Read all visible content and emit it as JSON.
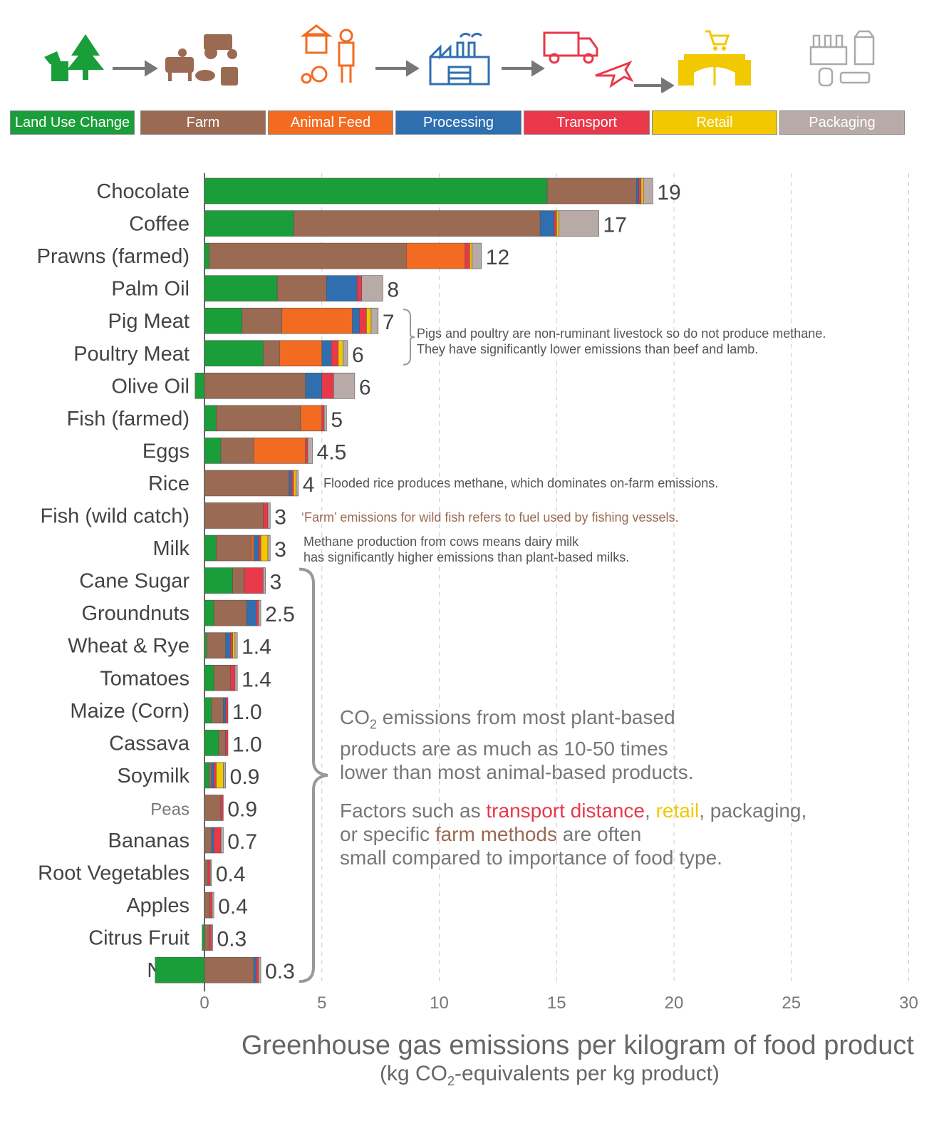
{
  "colors": {
    "Land Use Change": "#1a9e3a",
    "Farm": "#9a6a52",
    "Animal Feed": "#f26b21",
    "Processing": "#2f6fb0",
    "Transport": "#e8384a",
    "Retail": "#f2c800",
    "Packaging": "#b8aba7"
  },
  "icons": [
    "tree-stump-icon",
    "livestock-tractor-icon",
    "farmer-feed-icon",
    "factory-icon",
    "truck-plane-icon",
    "shop-icon",
    "packaging-icon"
  ],
  "legend": [
    "Land Use Change",
    "Farm",
    "Animal Feed",
    "Processing",
    "Transport",
    "Retail",
    "Packaging"
  ],
  "chart_data": {
    "type": "bar",
    "orientation": "horizontal",
    "stacked": true,
    "xlabel": "Greenhouse gas emissions per kilogram of food product",
    "xlabel_sub": "(kg CO2-equivalents per kg product)",
    "xlim": [
      0,
      30
    ],
    "xticks": [
      0,
      5,
      10,
      15,
      20,
      25,
      30
    ],
    "grid": "vertical dashed",
    "components": [
      "Land Use Change",
      "Farm",
      "Animal Feed",
      "Processing",
      "Transport",
      "Retail",
      "Packaging"
    ],
    "rows": [
      {
        "label": "Chocolate",
        "total": "19",
        "values": [
          14.6,
          3.8,
          0,
          0.1,
          0.1,
          0.1,
          0.4
        ]
      },
      {
        "label": "Coffee",
        "total": "17",
        "values": [
          3.8,
          10.5,
          0,
          0.6,
          0.1,
          0.1,
          1.7
        ]
      },
      {
        "label": "Prawns (farmed)",
        "total": "12",
        "values": [
          0.2,
          8.4,
          2.5,
          0,
          0.2,
          0.1,
          0.4
        ]
      },
      {
        "label": "Palm Oil",
        "total": "8",
        "values": [
          3.1,
          2.1,
          0,
          1.3,
          0.2,
          0,
          0.9
        ]
      },
      {
        "label": "Pig Meat",
        "total": "7",
        "values": [
          1.6,
          1.7,
          3.0,
          0.3,
          0.3,
          0.2,
          0.3
        ]
      },
      {
        "label": "Poultry Meat",
        "total": "6",
        "values": [
          2.5,
          0.7,
          1.8,
          0.4,
          0.3,
          0.2,
          0.2
        ]
      },
      {
        "label": "Olive Oil",
        "total": "6",
        "values": [
          -0.4,
          4.3,
          0,
          0.7,
          0.5,
          0,
          0.9
        ]
      },
      {
        "label": "Fish (farmed)",
        "total": "5",
        "values": [
          0.5,
          3.6,
          0.9,
          0,
          0.1,
          0,
          0.1
        ]
      },
      {
        "label": "Eggs",
        "total": "4.5",
        "values": [
          0.7,
          1.4,
          2.2,
          0,
          0.1,
          0,
          0.2
        ]
      },
      {
        "label": "Rice",
        "total": "4",
        "values": [
          0,
          3.6,
          0,
          0.1,
          0.1,
          0.1,
          0.1
        ]
      },
      {
        "label": "Fish (wild catch)",
        "total": "3",
        "values": [
          0,
          2.5,
          0,
          0,
          0.2,
          0,
          0.1
        ]
      },
      {
        "label": "Milk",
        "total": "3",
        "values": [
          0.5,
          1.5,
          0.1,
          0.2,
          0.1,
          0.3,
          0.1
        ]
      },
      {
        "label": "Cane Sugar",
        "total": "3",
        "values": [
          1.2,
          0.5,
          0,
          0,
          0.8,
          0,
          0.1
        ]
      },
      {
        "label": "Groundnuts",
        "total": "2.5",
        "values": [
          0.4,
          1.4,
          0,
          0.4,
          0.1,
          0,
          0.1
        ]
      },
      {
        "label": "Wheat & Rye",
        "total": "1.4",
        "values": [
          0.1,
          0.8,
          0,
          0.2,
          0.1,
          0.1,
          0.1
        ]
      },
      {
        "label": "Tomatoes",
        "total": "1.4",
        "values": [
          0.4,
          0.7,
          0,
          0,
          0.2,
          0,
          0.1
        ]
      },
      {
        "label": "Maize (Corn)",
        "total": "1.0",
        "values": [
          0.3,
          0.5,
          0,
          0.1,
          0.1,
          0,
          0
        ]
      },
      {
        "label": "Cassava",
        "total": "1.0",
        "values": [
          0.6,
          0.3,
          0,
          0,
          0.1,
          0,
          0
        ]
      },
      {
        "label": "Soymilk",
        "total": "0.9",
        "values": [
          0.2,
          0.1,
          0,
          0.1,
          0.1,
          0.3,
          0.1
        ]
      },
      {
        "label": "Peas",
        "total": "0.9",
        "values": [
          0,
          0.7,
          0,
          0,
          0.1,
          0,
          0
        ]
      },
      {
        "label": "Bananas",
        "total": "0.7",
        "values": [
          0,
          0.3,
          0,
          0.1,
          0.3,
          0,
          0.1
        ]
      },
      {
        "label": "Root Vegetables",
        "total": "0.4",
        "values": [
          0,
          0.15,
          0,
          0,
          0.1,
          0,
          0.05
        ]
      },
      {
        "label": "Apples",
        "total": "0.4",
        "values": [
          0,
          0.23,
          0,
          0,
          0.1,
          0,
          0.07
        ]
      },
      {
        "label": "Citrus Fruit",
        "total": "0.3",
        "values": [
          -0.1,
          0.2,
          0,
          0,
          0.1,
          0,
          0.05
        ]
      },
      {
        "label": "Nuts",
        "total": "0.3",
        "values": [
          -2.1,
          2.1,
          0,
          0.1,
          0.1,
          0,
          0.1
        ]
      }
    ]
  },
  "annotations": {
    "pig_poultry_1": "Pigs and poultry are non-ruminant livestock so do not produce methane.",
    "pig_poultry_2": "They have significantly lower emissions than beef and lamb.",
    "rice": "Flooded rice produces methane, which dominates on-farm emissions.",
    "wild_fish": "‘Farm’ emissions for wild fish refers to fuel used by fishing vessels.",
    "milk_1": "Methane production from cows means dairy milk",
    "milk_2": "has significantly higher emissions than plant-based milks.",
    "plant_1a": "CO",
    "plant_1b": "2",
    "plant_1c": " emissions from most plant-based",
    "plant_2": "products are as much as 10-50 times",
    "plant_3": "lower than most animal-based products.",
    "factors_1a": "Factors such as ",
    "factors_1b": "transport distance",
    "factors_1c": ", ",
    "factors_1d": "retail",
    "factors_1e": ", packaging,",
    "factors_2a": "or specific ",
    "factors_2b": "farm methods",
    "factors_2c": " are often",
    "factors_3": "small compared to importance of food type."
  },
  "axis_title": {
    "main": "Greenhouse gas emissions per kilogram of food product",
    "sub_a": "(kg CO",
    "sub_b": "2",
    "sub_c": "-equivalents per kg product)"
  }
}
